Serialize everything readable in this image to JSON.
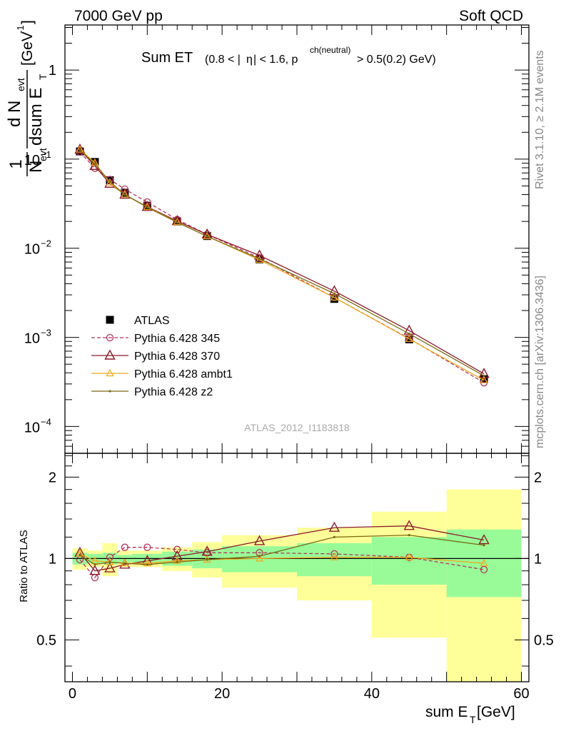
{
  "header": {
    "left": "7000 GeV pp",
    "right": "Soft QCD"
  },
  "side_labels": {
    "rivet": "Rivet 3.1.10, ≥ 2.1M events",
    "mcplots": "mcplots.cern.ch [arXiv:1306.3436]"
  },
  "watermark": "ATLAS_2012_I1183818",
  "title": {
    "main": "Sum ET",
    "cond_a": "(0.8 < |",
    "cond_eta": "η",
    "cond_b": "| < 1.6, p",
    "cond_sup": "ch(neutral)",
    "cond_c": " > 0.5(0.2) GeV)"
  },
  "ylabel_main": {
    "one": "1",
    "N": "N",
    "N_sub": "evt",
    "dN": "d N",
    "dN_sub": "evt",
    "dsum": "dsum E",
    "dsum_sub": "T",
    "unit": "[GeV",
    "unit_sup": "-1",
    "unit_end": "]"
  },
  "ylabel_ratio": "Ratio to ATLAS",
  "xlabel": {
    "main": "sum E",
    "sub": "T",
    "unit": " [GeV]"
  },
  "colors": {
    "atlas": "#000000",
    "p345": "#b5355a",
    "p370": "#8c1a2a",
    "ambt1": "#f2a81d",
    "z2": "#7a6b14",
    "band_inner": "#98fb98",
    "band_outer": "#ffff99"
  },
  "chart_data": [
    {
      "type": "line",
      "panel": "main",
      "yscale": "log",
      "xlim": [
        -1,
        61
      ],
      "ylim": [
        5e-05,
        3.2
      ],
      "yticks": [
        "10^{-4}",
        "10^{-3}",
        "10^{-2}",
        "10^{-1}",
        "1"
      ],
      "x": [
        1,
        3,
        5,
        7,
        10,
        14,
        18,
        25,
        35,
        45,
        55
      ],
      "series": [
        {
          "name": "ATLAS",
          "marker": "square",
          "values": [
            0.122,
            0.093,
            0.058,
            0.042,
            0.03,
            0.02,
            0.0137,
            0.0075,
            0.0027,
            0.00095,
            0.00034
          ]
        },
        {
          "name": "Pythia 6.428 345",
          "marker": "circle",
          "dashed": true,
          "values": [
            0.12,
            0.079,
            0.059,
            0.046,
            0.033,
            0.021,
            0.0143,
            0.0078,
            0.0028,
            0.00097,
            0.00031
          ]
        },
        {
          "name": "Pythia 6.428 370",
          "marker": "triangle",
          "values": [
            0.128,
            0.084,
            0.053,
            0.04,
            0.0292,
            0.0202,
            0.0143,
            0.0083,
            0.0033,
            0.00119,
            0.00039
          ]
        },
        {
          "name": "Pythia 6.428 ambt1",
          "marker": "smalltriangle",
          "values": [
            0.128,
            0.091,
            0.054,
            0.04,
            0.029,
            0.0197,
            0.0136,
            0.0074,
            0.0028,
            0.00096,
            0.00033
          ]
        },
        {
          "name": "Pythia 6.428 z2",
          "marker": "dot",
          "values": [
            0.127,
            0.088,
            0.056,
            0.04,
            0.0288,
            0.0195,
            0.0136,
            0.0076,
            0.0031,
            0.0011,
            0.00037
          ]
        }
      ],
      "legend": "bottom-left"
    },
    {
      "type": "line",
      "panel": "ratio",
      "yscale": "log",
      "xlim": [
        -1,
        61
      ],
      "ylim": [
        0.35,
        2.45
      ],
      "yticks": [
        "0.5",
        "1",
        "2"
      ],
      "xticks": [
        "0",
        "20",
        "40",
        "60"
      ],
      "x": [
        1,
        3,
        5,
        7,
        10,
        14,
        18,
        25,
        35,
        45,
        55
      ],
      "bands": {
        "edges": [
          0,
          2,
          4,
          6,
          8,
          12,
          16,
          20,
          30,
          40,
          50,
          60
        ],
        "inner_low": [
          0.95,
          0.96,
          0.95,
          0.97,
          0.96,
          0.94,
          0.92,
          0.89,
          0.86,
          0.8,
          0.72
        ],
        "inner_high": [
          1.05,
          1.04,
          1.05,
          1.03,
          1.04,
          1.06,
          1.08,
          1.11,
          1.14,
          1.2,
          1.28
        ],
        "outer_low": [
          0.91,
          0.93,
          0.86,
          0.93,
          0.93,
          0.9,
          0.85,
          0.78,
          0.7,
          0.51,
          0.35
        ],
        "outer_high": [
          1.09,
          1.07,
          1.14,
          1.07,
          1.07,
          1.1,
          1.15,
          1.22,
          1.3,
          1.49,
          1.8
        ]
      },
      "series": [
        {
          "name": "Pythia 6.428 345",
          "values": [
            0.99,
            0.85,
            1.01,
            1.1,
            1.1,
            1.08,
            1.05,
            1.05,
            1.04,
            1.01,
            0.91
          ]
        },
        {
          "name": "Pythia 6.428 370",
          "values": [
            1.05,
            0.9,
            0.92,
            0.95,
            0.98,
            1.02,
            1.06,
            1.16,
            1.3,
            1.32,
            1.17
          ]
        },
        {
          "name": "Pythia 6.428 ambt1",
          "values": [
            1.04,
            0.98,
            0.97,
            0.96,
            0.96,
            0.98,
            0.99,
            1.0,
            1.01,
            1.01,
            0.96
          ]
        },
        {
          "name": "Pythia 6.428 z2",
          "values": [
            1.03,
            0.95,
            0.97,
            0.96,
            0.95,
            0.97,
            0.99,
            1.02,
            1.2,
            1.22,
            1.12
          ]
        }
      ]
    }
  ]
}
